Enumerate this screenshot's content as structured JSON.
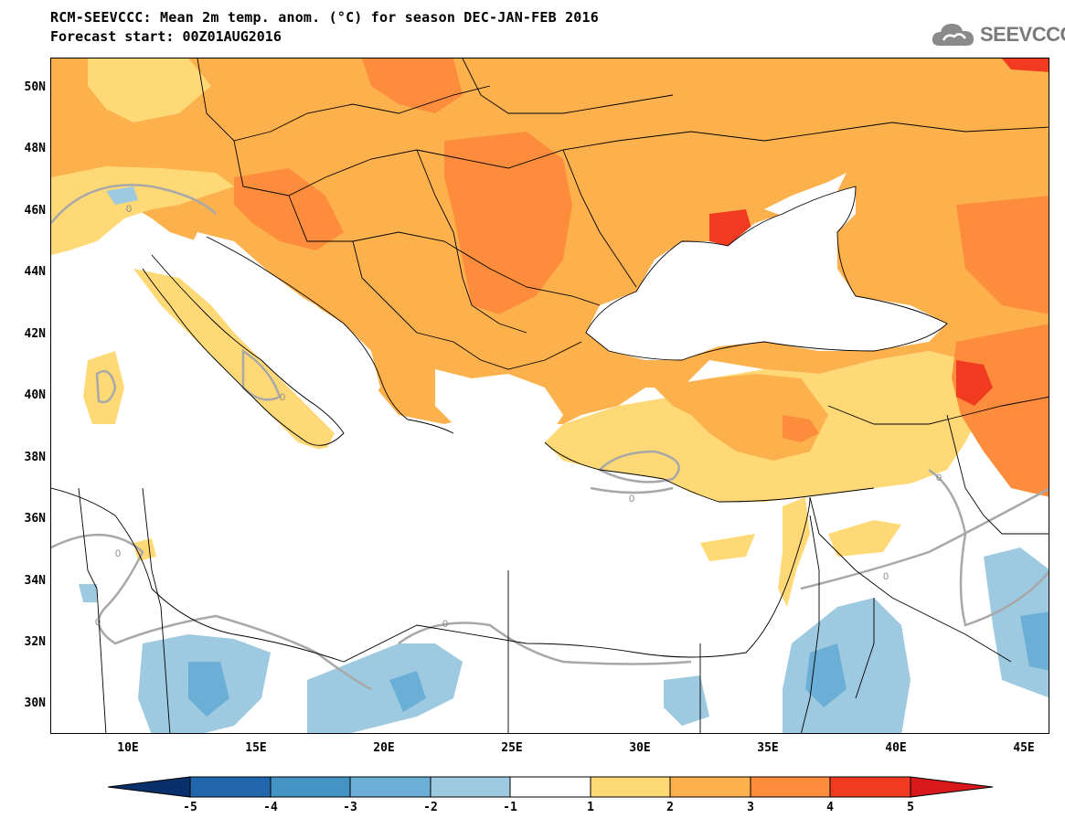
{
  "header": {
    "title": "RCM-SEEVCCC: Mean 2m temp. anom. (°C) for season DEC-JAN-FEB 2016",
    "subtitle": "Forecast start: 00Z01AUG2016",
    "logo_text": "SEEVCCC"
  },
  "map": {
    "lat_ticks": [
      "50N",
      "48N",
      "46N",
      "44N",
      "42N",
      "40N",
      "38N",
      "36N",
      "34N",
      "32N",
      "30N"
    ],
    "lon_ticks": [
      "10E",
      "15E",
      "20E",
      "25E",
      "30E",
      "35E",
      "40E",
      "45E"
    ],
    "contour_label": "0"
  },
  "colorbar": {
    "labels": [
      "-5",
      "-4",
      "-3",
      "-2",
      "-1",
      "1",
      "2",
      "3",
      "4",
      "5"
    ],
    "colors": [
      "#08306b",
      "#2166ac",
      "#4393c3",
      "#6baed6",
      "#9ecae1",
      "#ffffff",
      "#fed976",
      "#fdb14d",
      "#fd8d3c",
      "#f03b20",
      "#d7191c"
    ]
  }
}
